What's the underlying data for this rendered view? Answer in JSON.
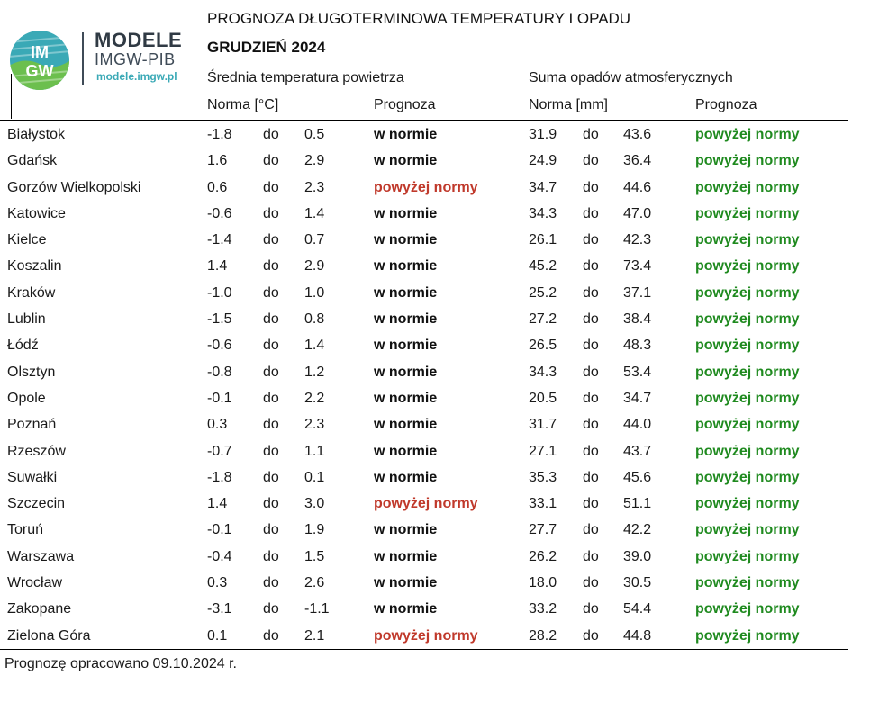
{
  "logo": {
    "badge_text": "IMGW",
    "name": "MODELE",
    "org": "IMGW-PIB",
    "url": "modele.imgw.pl",
    "colors": {
      "badge_teal": "#3aa9b6",
      "badge_green": "#6cbf4e",
      "text_dark": "#303a44"
    }
  },
  "header": {
    "title": "PROGNOZA DŁUGOTERMINOWA TEMPERATURY I OPADU",
    "month": "GRUDZIEŃ 2024"
  },
  "columns": {
    "temperature": {
      "group": "Średnia temperatura powietrza",
      "norm": "Norma [°C]",
      "forecast": "Prognoza"
    },
    "precipitation": {
      "group": "Suma opadów atmosferycznych",
      "norm": "Norma [mm]",
      "forecast": "Prognoza"
    }
  },
  "colors": {
    "normal": "#111111",
    "above_temp": "#c0392b",
    "above_precip": "#1f8a1f"
  },
  "rows": [
    {
      "city": "Białystok",
      "t_lo": "-1.8",
      "t_do": "do",
      "t_hi": "0.5",
      "t_fc": "w normie",
      "p_lo": "31.9",
      "p_do": "do",
      "p_hi": "43.6",
      "p_fc": "powyżej normy"
    },
    {
      "city": "Gdańsk",
      "t_lo": "1.6",
      "t_do": "do",
      "t_hi": "2.9",
      "t_fc": "w normie",
      "p_lo": "24.9",
      "p_do": "do",
      "p_hi": "36.4",
      "p_fc": "powyżej normy"
    },
    {
      "city": "Gorzów Wielkopolski",
      "t_lo": "0.6",
      "t_do": "do",
      "t_hi": "2.3",
      "t_fc": "powyżej normy",
      "p_lo": "34.7",
      "p_do": "do",
      "p_hi": "44.6",
      "p_fc": "powyżej normy"
    },
    {
      "city": "Katowice",
      "t_lo": "-0.6",
      "t_do": "do",
      "t_hi": "1.4",
      "t_fc": "w normie",
      "p_lo": "34.3",
      "p_do": "do",
      "p_hi": "47.0",
      "p_fc": "powyżej normy"
    },
    {
      "city": "Kielce",
      "t_lo": "-1.4",
      "t_do": "do",
      "t_hi": "0.7",
      "t_fc": "w normie",
      "p_lo": "26.1",
      "p_do": "do",
      "p_hi": "42.3",
      "p_fc": "powyżej normy"
    },
    {
      "city": "Koszalin",
      "t_lo": "1.4",
      "t_do": "do",
      "t_hi": "2.9",
      "t_fc": "w normie",
      "p_lo": "45.2",
      "p_do": "do",
      "p_hi": "73.4",
      "p_fc": "powyżej normy"
    },
    {
      "city": "Kraków",
      "t_lo": "-1.0",
      "t_do": "do",
      "t_hi": "1.0",
      "t_fc": "w normie",
      "p_lo": "25.2",
      "p_do": "do",
      "p_hi": "37.1",
      "p_fc": "powyżej normy"
    },
    {
      "city": "Lublin",
      "t_lo": "-1.5",
      "t_do": "do",
      "t_hi": "0.8",
      "t_fc": "w normie",
      "p_lo": "27.2",
      "p_do": "do",
      "p_hi": "38.4",
      "p_fc": "powyżej normy"
    },
    {
      "city": "Łódź",
      "t_lo": "-0.6",
      "t_do": "do",
      "t_hi": "1.4",
      "t_fc": "w normie",
      "p_lo": "26.5",
      "p_do": "do",
      "p_hi": "48.3",
      "p_fc": "powyżej normy"
    },
    {
      "city": "Olsztyn",
      "t_lo": "-0.8",
      "t_do": "do",
      "t_hi": "1.2",
      "t_fc": "w normie",
      "p_lo": "34.3",
      "p_do": "do",
      "p_hi": "53.4",
      "p_fc": "powyżej normy"
    },
    {
      "city": "Opole",
      "t_lo": "-0.1",
      "t_do": "do",
      "t_hi": "2.2",
      "t_fc": "w normie",
      "p_lo": "20.5",
      "p_do": "do",
      "p_hi": "34.7",
      "p_fc": "powyżej normy"
    },
    {
      "city": "Poznań",
      "t_lo": "0.3",
      "t_do": "do",
      "t_hi": "2.3",
      "t_fc": "w normie",
      "p_lo": "31.7",
      "p_do": "do",
      "p_hi": "44.0",
      "p_fc": "powyżej normy"
    },
    {
      "city": "Rzeszów",
      "t_lo": "-0.7",
      "t_do": "do",
      "t_hi": "1.1",
      "t_fc": "w normie",
      "p_lo": "27.1",
      "p_do": "do",
      "p_hi": "43.7",
      "p_fc": "powyżej normy"
    },
    {
      "city": "Suwałki",
      "t_lo": "-1.8",
      "t_do": "do",
      "t_hi": "0.1",
      "t_fc": "w normie",
      "p_lo": "35.3",
      "p_do": "do",
      "p_hi": "45.6",
      "p_fc": "powyżej normy"
    },
    {
      "city": "Szczecin",
      "t_lo": "1.4",
      "t_do": "do",
      "t_hi": "3.0",
      "t_fc": "powyżej normy",
      "p_lo": "33.1",
      "p_do": "do",
      "p_hi": "51.1",
      "p_fc": "powyżej normy"
    },
    {
      "city": "Toruń",
      "t_lo": "-0.1",
      "t_do": "do",
      "t_hi": "1.9",
      "t_fc": "w normie",
      "p_lo": "27.7",
      "p_do": "do",
      "p_hi": "42.2",
      "p_fc": "powyżej normy"
    },
    {
      "city": "Warszawa",
      "t_lo": "-0.4",
      "t_do": "do",
      "t_hi": "1.5",
      "t_fc": "w normie",
      "p_lo": "26.2",
      "p_do": "do",
      "p_hi": "39.0",
      "p_fc": "powyżej normy"
    },
    {
      "city": "Wrocław",
      "t_lo": "0.3",
      "t_do": "do",
      "t_hi": "2.6",
      "t_fc": "w normie",
      "p_lo": "18.0",
      "p_do": "do",
      "p_hi": "30.5",
      "p_fc": "powyżej normy"
    },
    {
      "city": "Zakopane",
      "t_lo": "-3.1",
      "t_do": "do",
      "t_hi": "-1.1",
      "t_fc": "w normie",
      "p_lo": "33.2",
      "p_do": "do",
      "p_hi": "54.4",
      "p_fc": "powyżej normy"
    },
    {
      "city": "Zielona Góra",
      "t_lo": "0.1",
      "t_do": "do",
      "t_hi": "2.1",
      "t_fc": "powyżej normy",
      "p_lo": "28.2",
      "p_do": "do",
      "p_hi": "44.8",
      "p_fc": "powyżej normy"
    }
  ],
  "footer": "Prognozę opracowano 09.10.2024 r."
}
